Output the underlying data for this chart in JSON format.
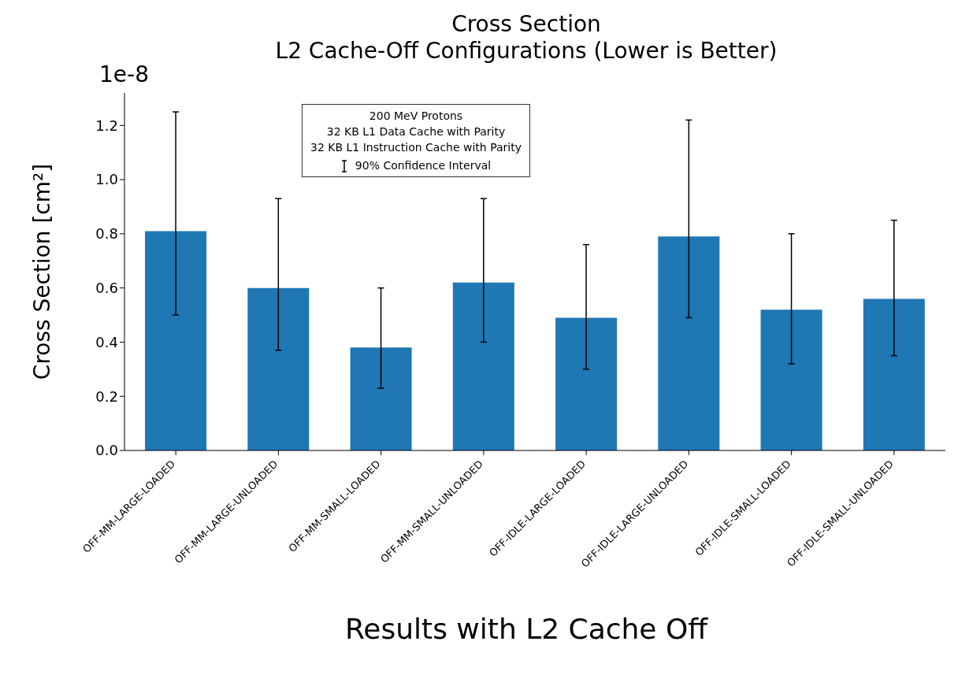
{
  "chart_data": {
    "type": "bar",
    "title": "Cross Section",
    "subtitle": "L2 Cache-Off Configurations (Lower is Better)",
    "ylabel": "Cross Section [cm²]",
    "categories": [
      "OFF-MM-LARGE-LOADED",
      "OFF-MM-LARGE-UNLOADED",
      "OFF-MM-SMALL-LOADED",
      "OFF-MM-SMALL-UNLOADED",
      "OFF-IDLE-LARGE-LOADED",
      "OFF-IDLE-LARGE-UNLOADED",
      "OFF-IDLE-SMALL-LOADED",
      "OFF-IDLE-SMALL-UNLOADED"
    ],
    "values": [
      0.81,
      0.6,
      0.38,
      0.62,
      0.49,
      0.79,
      0.52,
      0.56
    ],
    "errors": [
      [
        0.5,
        1.25
      ],
      [
        0.37,
        0.93
      ],
      [
        0.23,
        0.6
      ],
      [
        0.4,
        0.93
      ],
      [
        0.3,
        0.76
      ],
      [
        0.49,
        1.22
      ],
      [
        0.32,
        0.8
      ],
      [
        0.35,
        0.85
      ]
    ],
    "color": "#1f77b4",
    "ylim": [
      0,
      1.32
    ],
    "yticks": [
      {
        "value": 0,
        "label": "0.0"
      },
      0.2,
      0.4,
      0.6,
      0.8,
      {
        "value": 1,
        "label": "1.0"
      },
      1.2
    ],
    "grid": false,
    "legend": false,
    "annotations": [
      "1e-8",
      "200 MeV Protons",
      "32 KB L1 Data Cache with Parity",
      "32 KB L1 Instruction Cache with Parity",
      "90% Confidence Interval",
      "Results with L2 Cache Off"
    ]
  }
}
